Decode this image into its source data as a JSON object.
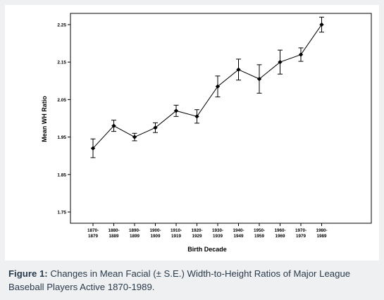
{
  "caption": {
    "label": "Figure 1:",
    "text": " Changes in Mean Facial (± S.E.) Width-to-Height Ratios of Major League Baseball Players Active 1870-1989."
  },
  "chart_data": {
    "type": "line",
    "title": "",
    "xlabel": "Birth Decade",
    "ylabel": "Mean WH Ratio",
    "ylim": [
      1.72,
      2.28
    ],
    "yticks": [
      1.75,
      1.85,
      1.95,
      2.05,
      2.15,
      2.25
    ],
    "ytick_labels": [
      "1.75",
      "1.85",
      "1.95",
      "2.05",
      "2.15",
      "2.25"
    ],
    "categories": [
      [
        "1870-",
        "1879"
      ],
      [
        "1880-",
        "1889"
      ],
      [
        "1890-",
        "1899"
      ],
      [
        "1900-",
        "1909"
      ],
      [
        "1910-",
        "1919"
      ],
      [
        "1920-",
        "1929"
      ],
      [
        "1930-",
        "1939"
      ],
      [
        "1940-",
        "1949"
      ],
      [
        "1950-",
        "1959"
      ],
      [
        "1960-",
        "1969"
      ],
      [
        "1970-",
        "1979"
      ],
      [
        "1980-",
        "1989"
      ]
    ],
    "series": [
      {
        "values": [
          1.92,
          1.98,
          1.95,
          1.975,
          2.02,
          2.005,
          2.085,
          2.13,
          2.105,
          2.15,
          2.17,
          2.25
        ],
        "se": [
          0.025,
          0.015,
          0.01,
          0.013,
          0.015,
          0.018,
          0.028,
          0.028,
          0.038,
          0.032,
          0.018,
          0.02
        ]
      }
    ],
    "grid": false,
    "legend": "none",
    "colors": {
      "line": "#000000",
      "marker": "#000000"
    }
  }
}
